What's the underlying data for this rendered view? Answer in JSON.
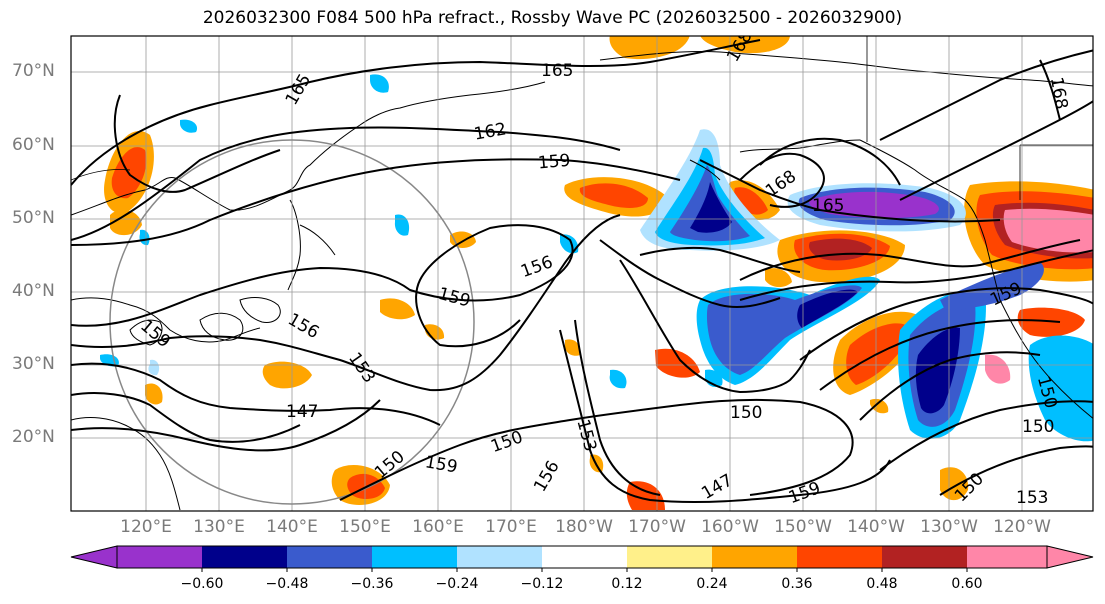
{
  "title": "2026032300 F084 500 hPa refract., Rossby Wave PC (2026032500 - 2026032900)",
  "colors": {
    "land_border": "#000000",
    "grid": "#999999",
    "axis_label": "#7a7a7a"
  },
  "axes": {
    "lat_labels": [
      "70°N",
      "60°N",
      "50°N",
      "40°N",
      "30°N",
      "20°N"
    ],
    "lon_labels": [
      "120°E",
      "130°E",
      "140°E",
      "150°E",
      "160°E",
      "170°E",
      "180°W",
      "170°W",
      "160°W",
      "150°W",
      "140°W",
      "130°W",
      "120°W"
    ]
  },
  "contour_labels": [
    "165",
    "165",
    "168",
    "162",
    "159",
    "168",
    "165",
    "156",
    "159",
    "159",
    "156",
    "153",
    "147",
    "150",
    "159",
    "153",
    "156",
    "147",
    "159",
    "150",
    "150",
    "150",
    "150",
    "153",
    "159",
    "150",
    "168"
  ],
  "colorbar": {
    "colors": [
      "#9932cc",
      "#00008b",
      "#3a5bcd",
      "#00bfff",
      "#b0e2ff",
      "#ffffff",
      "#fff08a",
      "#ffa500",
      "#ff4500",
      "#b22222",
      "#ff86a8"
    ],
    "tick_labels": [
      "−0.60",
      "−0.48",
      "−0.36",
      "−0.24",
      "−0.12",
      "0.12",
      "0.24",
      "0.36",
      "0.48",
      "0.60"
    ]
  }
}
